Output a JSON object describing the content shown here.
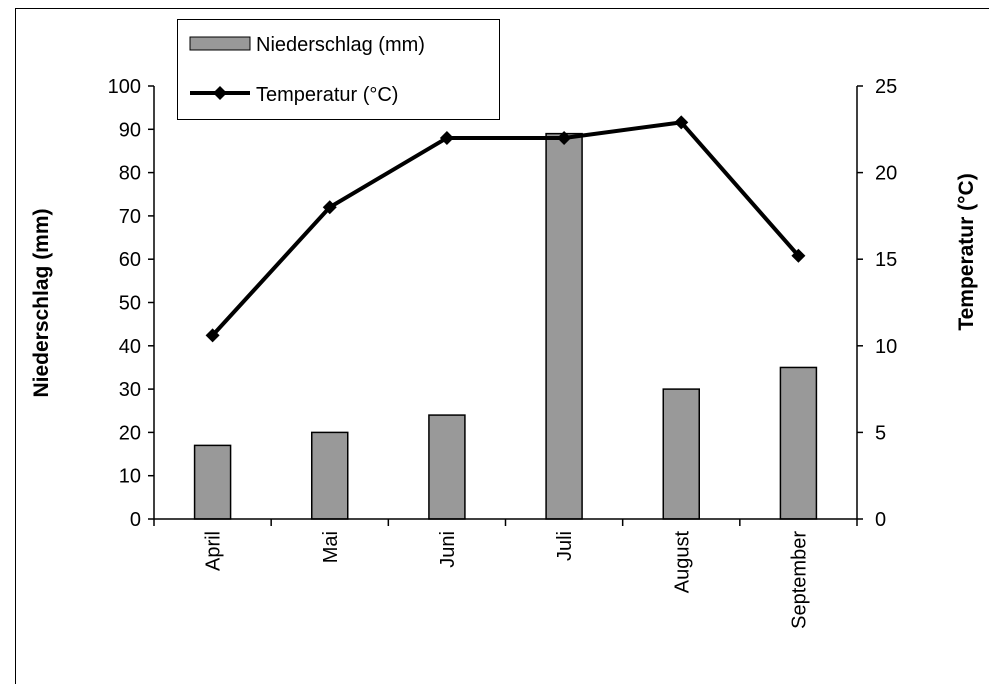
{
  "chart_data": {
    "type": "bar",
    "categories": [
      "April",
      "Mai",
      "Juni",
      "Juli",
      "August",
      "September"
    ],
    "series": [
      {
        "name": "Niederschlag (mm)",
        "type": "bar",
        "axis": "left",
        "values": [
          17,
          20,
          24,
          89,
          30,
          35
        ]
      },
      {
        "name": "Temperatur (°C)",
        "type": "line",
        "axis": "right",
        "values": [
          10.6,
          18,
          22,
          22,
          22.9,
          15.2
        ]
      }
    ],
    "ylabel": "Niederschlag (mm)",
    "y2label": "Temperatur (°C)",
    "ylim": [
      0,
      100
    ],
    "y2lim": [
      0,
      25
    ],
    "yticks": [
      0,
      10,
      20,
      30,
      40,
      50,
      60,
      70,
      80,
      90,
      100
    ],
    "y2ticks": [
      0,
      5,
      10,
      15,
      20,
      25
    ],
    "legend_position": "top-left",
    "grid": false,
    "colors": {
      "bar_fill": "#999999",
      "bar_stroke": "#000000",
      "line": "#000000"
    }
  }
}
